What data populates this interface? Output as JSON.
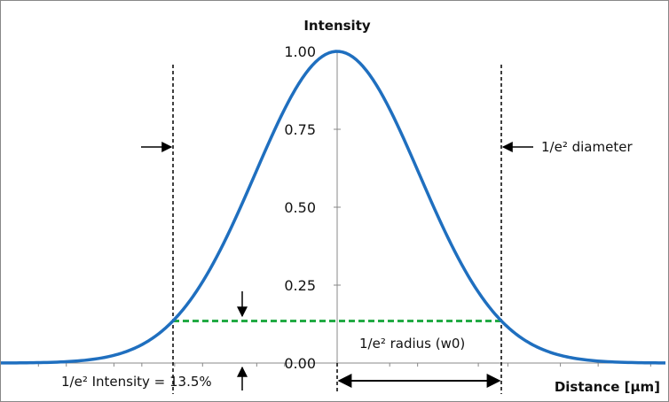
{
  "chart_data": {
    "type": "line",
    "title": "",
    "ylabel": "Intensity",
    "xlabel": "Distance [µm]",
    "ylim": [
      0,
      1
    ],
    "xlim": [
      -2.14,
      2.0
    ],
    "y_ticks": [
      {
        "value": 0,
        "label": "0.00"
      },
      {
        "value": 0.25,
        "label": "0.25"
      },
      {
        "value": 0.5,
        "label": "0.50"
      },
      {
        "value": 0.75,
        "label": "0.75"
      },
      {
        "value": 1,
        "label": "1.00"
      }
    ],
    "x_minor_ticks": [
      -2.14,
      -1.82,
      -1.65,
      -1.36,
      -1.19,
      -0.99,
      -0.82,
      -0.49,
      -0.32,
      0.32,
      0.49,
      0.86,
      1.04,
      1.36,
      1.59,
      1.91
    ],
    "series": [
      {
        "name": "",
        "color": "#1f6fbf",
        "x": [
          -2.14,
          -2.0,
          -1.8,
          -1.6,
          -1.4,
          -1.2,
          -1.0,
          -0.8,
          -0.6,
          -0.4,
          -0.2,
          0.0,
          0.2,
          0.4,
          0.6,
          0.8,
          1.0,
          1.2,
          1.4,
          1.6,
          1.8,
          2.0
        ],
        "y": [
          0.0001,
          0.0003,
          0.0016,
          0.006,
          0.0198,
          0.0561,
          0.1353,
          0.278,
          0.4868,
          0.7261,
          0.9231,
          1.0,
          0.9231,
          0.7261,
          0.4868,
          0.278,
          0.1353,
          0.0561,
          0.0198,
          0.006,
          0.0016,
          0.0003
        ]
      }
    ],
    "w0": 1.0,
    "intensity_level": 0.135,
    "annotations": {
      "diameter": "1/e² diameter",
      "radius": "1/e² radius (w0)",
      "intensity": "1/e² Intensity = 13.5%"
    }
  },
  "colors": {
    "curve": "#1f6fbf",
    "threshold": "#22aa44",
    "guides": "#000000",
    "axis": "#888888"
  }
}
